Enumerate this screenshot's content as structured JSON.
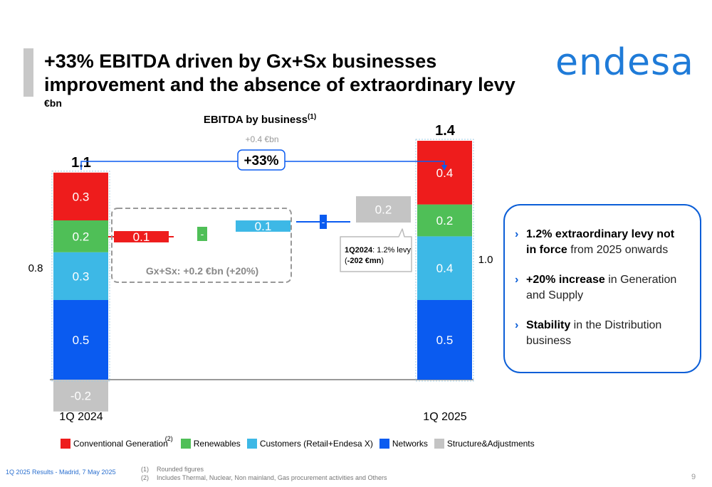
{
  "header": {
    "title": "+33% EBITDA driven by Gx+Sx businesses improvement and the absence of extraordinary levy",
    "unit": "€bn",
    "logo_text": "endesa"
  },
  "chart_data": {
    "type": "bar",
    "subtype": "stacked waterfall",
    "title": "EBITDA by business",
    "title_note": "(1)",
    "categories": [
      "1Q 2024",
      "Conventional Generation",
      "Renewables",
      "Customers (Retail+Endesa X)",
      "Networks",
      "Structure&Adjustments",
      "1Q 2025"
    ],
    "stacks": {
      "1Q 2024": {
        "total_label": "1.1",
        "side_label": "0.8",
        "segments": [
          {
            "series": "Networks",
            "value": 0.5,
            "label": "0.5"
          },
          {
            "series": "Customers (Retail+Endesa X)",
            "value": 0.3,
            "label": "0.3"
          },
          {
            "series": "Renewables",
            "value": 0.2,
            "label": "0.2"
          },
          {
            "series": "Conventional Generation",
            "value": 0.3,
            "label": "0.3"
          },
          {
            "series": "Structure&Adjustments",
            "value": -0.2,
            "label": "-0.2"
          }
        ]
      },
      "1Q 2025": {
        "total_label": "1.4",
        "side_label": "1.0",
        "segments": [
          {
            "series": "Networks",
            "value": 0.5,
            "label": "0.5"
          },
          {
            "series": "Customers (Retail+Endesa X)",
            "value": 0.4,
            "label": "0.4"
          },
          {
            "series": "Renewables",
            "value": 0.2,
            "label": "0.2"
          },
          {
            "series": "Conventional Generation",
            "value": 0.4,
            "label": "0.4"
          }
        ]
      }
    },
    "deltas": [
      {
        "series": "Conventional Generation",
        "value": 0.1,
        "label": "0.1"
      },
      {
        "series": "Renewables",
        "value": 0.0,
        "label": "-"
      },
      {
        "series": "Customers (Retail+Endesa X)",
        "value": 0.1,
        "label": "0.1"
      },
      {
        "series": "Networks",
        "value": 0.0,
        "label": "-"
      },
      {
        "series": "Structure&Adjustments",
        "value": 0.2,
        "label": "0.2"
      }
    ],
    "annotations": {
      "delta_abs": "+0.4 €bn",
      "delta_pct": "+33%",
      "gxsx": "Gx+Sx: +0.2 €bn (+20%)",
      "levy_bold": "1Q2024",
      "levy_text": ": 1.2% levy",
      "levy_paren_open": "(",
      "levy_amount": "-202 €mn",
      "levy_paren_close": ")"
    },
    "legend": [
      {
        "name": "Conventional Generation",
        "note": "(2)",
        "color": "#ee1c1c"
      },
      {
        "name": "Renewables",
        "color": "#4fbf57"
      },
      {
        "name": "Customers (Retail+Endesa X)",
        "color": "#3db8e6"
      },
      {
        "name": "Networks",
        "color": "#0a5bf0"
      },
      {
        "name": "Structure&Adjustments",
        "color": "#c4c4c4"
      }
    ],
    "legend_placement": "bottom",
    "grid": false
  },
  "bullets": [
    {
      "bold": "1.2% extraordinary levy not in force",
      "text": " from 2025 onwards"
    },
    {
      "bold": "+20% increase",
      "text": " in Generation and Supply"
    },
    {
      "bold": "Stability",
      "text": " in the Distribution business"
    }
  ],
  "footer": {
    "left": "1Q 2025 Results - Madrid, 7 May 2025",
    "notes": [
      {
        "num": "(1)",
        "text": "Rounded figures"
      },
      {
        "num": "(2)",
        "text": "Includes Thermal, Nuclear, Non mainland, Gas procurement activities and Others"
      }
    ],
    "page": "9"
  }
}
